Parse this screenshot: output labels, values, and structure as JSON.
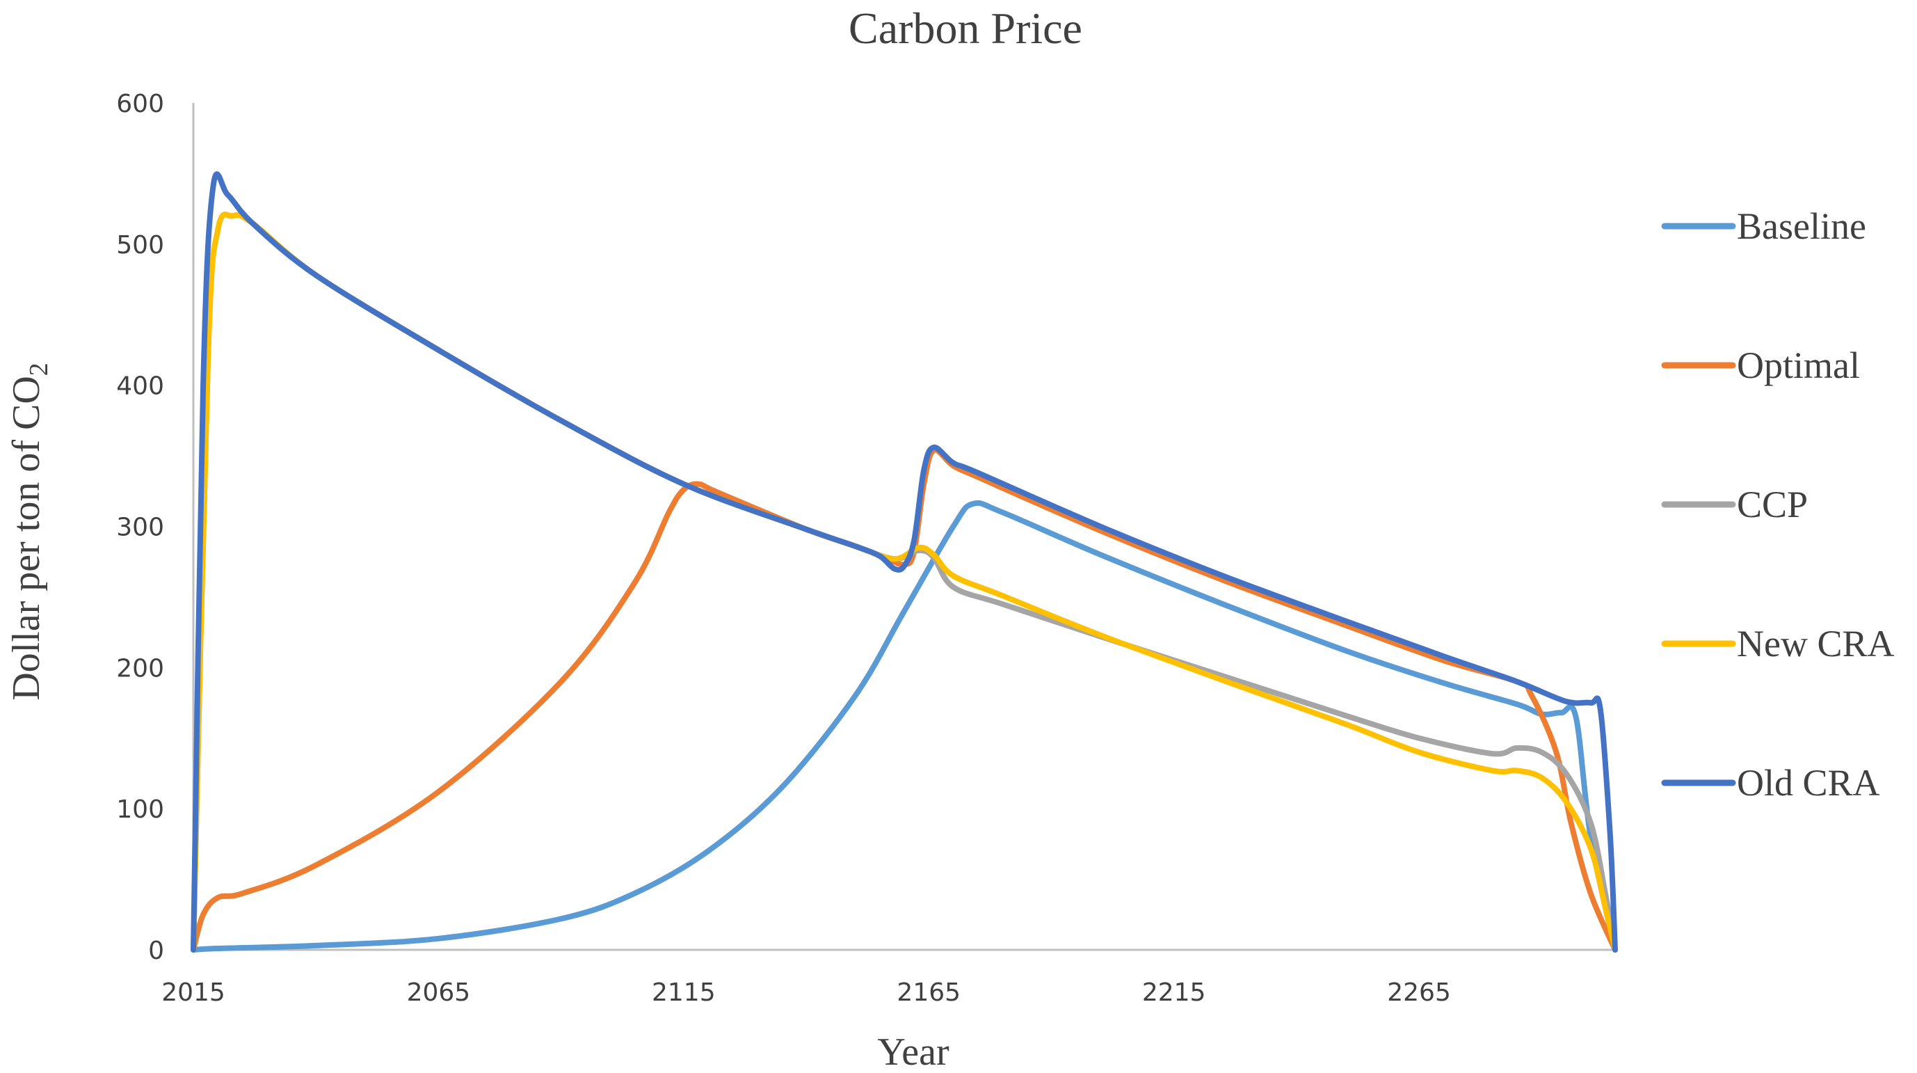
{
  "chart_data": {
    "type": "line",
    "title": "Carbon Price",
    "xlabel": "Year",
    "ylabel": "Dollar per ton of CO",
    "ylabel_subscript": "2",
    "xlim": [
      2015,
      2305
    ],
    "ylim": [
      0,
      600
    ],
    "x_ticks": [
      2015,
      2065,
      2115,
      2165,
      2215,
      2265
    ],
    "y_ticks": [
      0,
      100,
      200,
      300,
      400,
      500,
      600
    ],
    "legend_position": "right",
    "series": [
      {
        "name": "Baseline",
        "color": "#5B9BD5",
        "points": [
          [
            2015,
            0
          ],
          [
            2020,
            1
          ],
          [
            2040,
            3
          ],
          [
            2065,
            8
          ],
          [
            2090,
            22
          ],
          [
            2105,
            40
          ],
          [
            2120,
            70
          ],
          [
            2135,
            115
          ],
          [
            2150,
            180
          ],
          [
            2160,
            240
          ],
          [
            2170,
            300
          ],
          [
            2174,
            316
          ],
          [
            2180,
            310
          ],
          [
            2200,
            280
          ],
          [
            2225,
            245
          ],
          [
            2250,
            212
          ],
          [
            2270,
            189
          ],
          [
            2285,
            174
          ],
          [
            2290,
            167
          ],
          [
            2294,
            168
          ],
          [
            2297,
            165
          ],
          [
            2300,
            80
          ],
          [
            2305,
            0
          ]
        ]
      },
      {
        "name": "Optimal",
        "color": "#ED7D31",
        "points": [
          [
            2015,
            0
          ],
          [
            2017,
            25
          ],
          [
            2020,
            37
          ],
          [
            2025,
            40
          ],
          [
            2040,
            60
          ],
          [
            2065,
            112
          ],
          [
            2090,
            190
          ],
          [
            2105,
            260
          ],
          [
            2112,
            310
          ],
          [
            2115,
            326
          ],
          [
            2118,
            330
          ],
          [
            2122,
            324
          ],
          [
            2140,
            298
          ],
          [
            2150,
            286
          ],
          [
            2156,
            278
          ],
          [
            2160,
            273
          ],
          [
            2162,
            282
          ],
          [
            2164,
            330
          ],
          [
            2166,
            354
          ],
          [
            2170,
            343
          ],
          [
            2175,
            335
          ],
          [
            2200,
            297
          ],
          [
            2225,
            262
          ],
          [
            2250,
            230
          ],
          [
            2270,
            205
          ],
          [
            2285,
            190
          ],
          [
            2288,
            180
          ],
          [
            2293,
            140
          ],
          [
            2296,
            90
          ],
          [
            2300,
            40
          ],
          [
            2305,
            0
          ]
        ]
      },
      {
        "name": "CCP",
        "color": "#A5A5A5",
        "points": [
          [
            2015,
            0
          ],
          [
            2018,
            420
          ],
          [
            2020,
            510
          ],
          [
            2023,
            520
          ],
          [
            2027,
            515
          ],
          [
            2040,
            478
          ],
          [
            2065,
            425
          ],
          [
            2090,
            375
          ],
          [
            2115,
            330
          ],
          [
            2140,
            298
          ],
          [
            2150,
            286
          ],
          [
            2158,
            277
          ],
          [
            2163,
            283
          ],
          [
            2166,
            278
          ],
          [
            2170,
            257
          ],
          [
            2180,
            245
          ],
          [
            2200,
            222
          ],
          [
            2225,
            194
          ],
          [
            2250,
            166
          ],
          [
            2265,
            150
          ],
          [
            2280,
            139
          ],
          [
            2285,
            143
          ],
          [
            2290,
            140
          ],
          [
            2295,
            125
          ],
          [
            2300,
            90
          ],
          [
            2303,
            40
          ],
          [
            2305,
            0
          ]
        ]
      },
      {
        "name": "New CRA",
        "color": "#FFC000",
        "points": [
          [
            2015,
            0
          ],
          [
            2018,
            420
          ],
          [
            2020,
            510
          ],
          [
            2023,
            520
          ],
          [
            2027,
            515
          ],
          [
            2040,
            478
          ],
          [
            2065,
            425
          ],
          [
            2090,
            375
          ],
          [
            2115,
            330
          ],
          [
            2140,
            298
          ],
          [
            2150,
            286
          ],
          [
            2158,
            277
          ],
          [
            2163,
            285
          ],
          [
            2166,
            280
          ],
          [
            2170,
            265
          ],
          [
            2180,
            251
          ],
          [
            2200,
            223
          ],
          [
            2225,
            191
          ],
          [
            2250,
            160
          ],
          [
            2265,
            140
          ],
          [
            2280,
            127
          ],
          [
            2285,
            127
          ],
          [
            2290,
            122
          ],
          [
            2295,
            105
          ],
          [
            2300,
            72
          ],
          [
            2303,
            30
          ],
          [
            2305,
            0
          ]
        ]
      },
      {
        "name": "Old CRA",
        "color": "#4472C4",
        "points": [
          [
            2015,
            0
          ],
          [
            2017,
            400
          ],
          [
            2019,
            540
          ],
          [
            2022,
            535
          ],
          [
            2027,
            515
          ],
          [
            2040,
            478
          ],
          [
            2065,
            425
          ],
          [
            2090,
            375
          ],
          [
            2115,
            330
          ],
          [
            2140,
            298
          ],
          [
            2150,
            286
          ],
          [
            2155,
            279
          ],
          [
            2158,
            270
          ],
          [
            2160,
            272
          ],
          [
            2162,
            290
          ],
          [
            2164,
            340
          ],
          [
            2166,
            356
          ],
          [
            2170,
            345
          ],
          [
            2175,
            338
          ],
          [
            2200,
            300
          ],
          [
            2225,
            265
          ],
          [
            2250,
            233
          ],
          [
            2270,
            208
          ],
          [
            2285,
            190
          ],
          [
            2295,
            176
          ],
          [
            2300,
            175
          ],
          [
            2302,
            170
          ],
          [
            2304,
            80
          ],
          [
            2305,
            0
          ]
        ]
      }
    ]
  }
}
